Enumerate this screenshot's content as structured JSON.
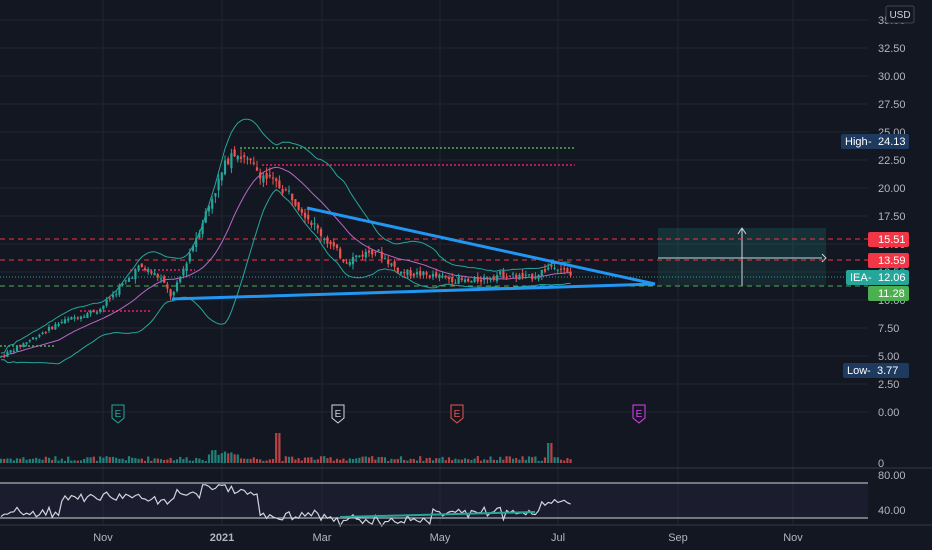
{
  "currency": "USD",
  "colors": {
    "background": "#131722",
    "up": "#26a69a",
    "down": "#ef5350",
    "trend_line": "#2196f3",
    "bollinger": "#26a69a",
    "sma": "#ba68c8",
    "resistance_green": "#4caf50",
    "resistance_magenta": "#e91e63",
    "tag_red": "#f23645",
    "tag_navy": "#1e3a5f",
    "tag_green": "#4caf50",
    "tag_teal": "#26a69a",
    "rsi_line": "#d1d4dc",
    "divergence": "#26a69a"
  },
  "price_axis": {
    "ticks": [
      "35.00",
      "32.50",
      "30.00",
      "27.50",
      "25.00",
      "22.50",
      "20.00",
      "17.50",
      "15.00",
      "12.50",
      "10.00",
      "7.50",
      "5.00",
      "2.50",
      "0.00"
    ]
  },
  "time_axis": {
    "ticks": [
      "Nov",
      "2021",
      "Mar",
      "May",
      "Jul",
      "Sep",
      "Nov"
    ]
  },
  "price_tags": {
    "high": {
      "label": "High",
      "value": "24.13"
    },
    "low": {
      "label": "Low",
      "value": "3.77"
    },
    "level_1": {
      "value": "15.51"
    },
    "level_2": {
      "value": "13.59"
    },
    "current": {
      "symbol": "IEA",
      "value": "12.06"
    },
    "support": {
      "value": "11.28"
    }
  },
  "earnings_markers": [
    {
      "label": "E",
      "color": "#26a69a"
    },
    {
      "label": "E",
      "color": "#d1d4dc"
    },
    {
      "label": "E",
      "color": "#ef5350"
    },
    {
      "label": "E",
      "color": "#e040fb"
    }
  ],
  "volume_axis": {
    "label": "0"
  },
  "rsi_axis": {
    "ticks": [
      "80.00",
      "40.00"
    ]
  },
  "chart_data": {
    "type": "candlestick",
    "symbol": "IEA",
    "x": [
      "Nov",
      "2021",
      "Mar",
      "May",
      "Jul"
    ],
    "y_range": [
      0,
      35
    ],
    "grid": true,
    "close_path": [
      [
        "Oct",
        4.9
      ],
      [
        "Nov",
        8.0
      ],
      [
        "Nov",
        9.2
      ],
      [
        "Dec",
        13.0
      ],
      [
        "Dec",
        12.0
      ],
      [
        "Dec",
        10.2
      ],
      [
        "2021",
        16.5
      ],
      [
        "2021",
        23.5
      ],
      [
        "Feb",
        21.0
      ],
      [
        "Feb",
        19.5
      ],
      [
        "Mar",
        16.0
      ],
      [
        "Mar",
        13.5
      ],
      [
        "Apr",
        14.5
      ],
      [
        "Apr",
        12.5
      ],
      [
        "May",
        12.2
      ],
      [
        "May",
        11.6
      ],
      [
        "Jun",
        12.3
      ],
      [
        "Jun",
        12.0
      ],
      [
        "Jul",
        13.2
      ],
      [
        "Jul",
        12.06
      ]
    ],
    "horizontal_levels": [
      24.13,
      22.2,
      15.51,
      13.59,
      12.06,
      11.28
    ],
    "triangle": {
      "upper": [
        [
          "Feb",
          18.3
        ],
        [
          "Aug",
          11.7
        ]
      ],
      "lower": [
        [
          "Dec",
          10.2
        ],
        [
          "Aug",
          11.7
        ]
      ]
    },
    "rsi_range": [
      30,
      80
    ]
  }
}
